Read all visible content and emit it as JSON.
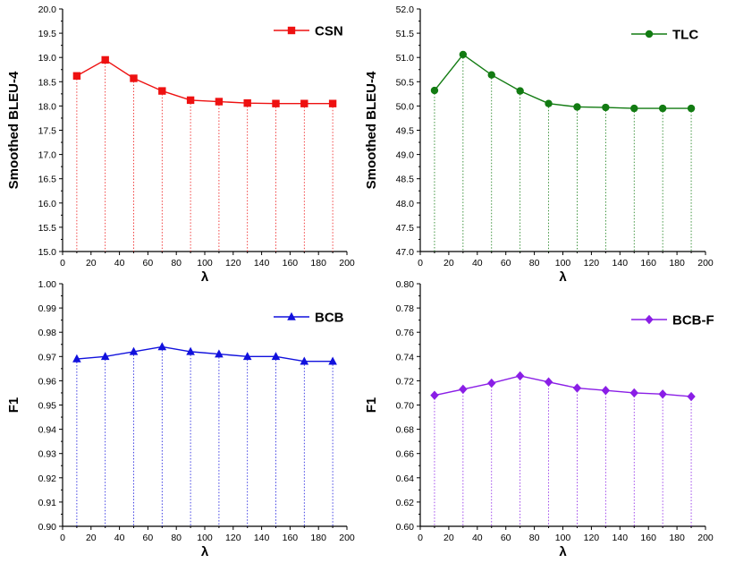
{
  "chart_data": [
    {
      "type": "line",
      "xlabel": "λ",
      "ylabel": "Smoothed BLEU-4",
      "xlim": [
        0,
        200
      ],
      "ylim": [
        15.0,
        20.0
      ],
      "xticks": [
        "0",
        "20",
        "40",
        "60",
        "80",
        "100",
        "120",
        "140",
        "160",
        "180",
        "200"
      ],
      "yticks": [
        "15.0",
        "15.5",
        "16.0",
        "16.5",
        "17.0",
        "17.5",
        "18.0",
        "18.5",
        "19.0",
        "19.5",
        "20.0"
      ],
      "x": [
        10,
        30,
        50,
        70,
        90,
        110,
        130,
        150,
        170,
        190
      ],
      "series": [
        {
          "name": "CSN",
          "values": [
            18.62,
            18.95,
            18.57,
            18.31,
            18.12,
            18.09,
            18.06,
            18.05,
            18.05,
            18.05
          ]
        }
      ],
      "color": "#ee1111",
      "marker": "square",
      "legend_position": "top-right",
      "drop_lines": true
    },
    {
      "type": "line",
      "xlabel": "λ",
      "ylabel": "Smoothed BLEU-4",
      "xlim": [
        0,
        200
      ],
      "ylim": [
        47.0,
        52.0
      ],
      "xticks": [
        "0",
        "20",
        "40",
        "60",
        "80",
        "100",
        "120",
        "140",
        "160",
        "180",
        "200"
      ],
      "yticks": [
        "47.0",
        "47.5",
        "48.0",
        "48.5",
        "49.0",
        "49.5",
        "50.0",
        "50.5",
        "51.0",
        "51.5",
        "52.0"
      ],
      "x": [
        10,
        30,
        50,
        70,
        90,
        110,
        130,
        150,
        170,
        190
      ],
      "series": [
        {
          "name": "TLC",
          "values": [
            50.32,
            51.06,
            50.64,
            50.31,
            50.05,
            49.98,
            49.97,
            49.95,
            49.95,
            49.95
          ]
        }
      ],
      "color": "#127b12",
      "marker": "circle",
      "legend_position": "top-right",
      "drop_lines": true
    },
    {
      "type": "line",
      "xlabel": "λ",
      "ylabel": "F1",
      "xlim": [
        0,
        200
      ],
      "ylim": [
        0.9,
        1.0
      ],
      "xticks": [
        "0",
        "20",
        "40",
        "60",
        "80",
        "100",
        "120",
        "140",
        "160",
        "180",
        "200"
      ],
      "yticks": [
        "0.90",
        "0.91",
        "0.92",
        "0.93",
        "0.94",
        "0.95",
        "0.96",
        "0.97",
        "0.98",
        "0.99",
        "1.00"
      ],
      "x": [
        10,
        30,
        50,
        70,
        90,
        110,
        130,
        150,
        170,
        190
      ],
      "series": [
        {
          "name": "BCB",
          "values": [
            0.969,
            0.97,
            0.972,
            0.974,
            0.972,
            0.971,
            0.97,
            0.97,
            0.968,
            0.968
          ]
        }
      ],
      "color": "#1111dd",
      "marker": "triangle",
      "legend_position": "top-right",
      "drop_lines": true
    },
    {
      "type": "line",
      "xlabel": "λ",
      "ylabel": "F1",
      "xlim": [
        0,
        200
      ],
      "ylim": [
        0.6,
        0.8
      ],
      "xticks": [
        "0",
        "20",
        "40",
        "60",
        "80",
        "100",
        "120",
        "140",
        "160",
        "180",
        "200"
      ],
      "yticks": [
        "0.60",
        "0.62",
        "0.64",
        "0.66",
        "0.68",
        "0.70",
        "0.72",
        "0.74",
        "0.76",
        "0.78",
        "0.80"
      ],
      "x": [
        10,
        30,
        50,
        70,
        90,
        110,
        130,
        150,
        170,
        190
      ],
      "series": [
        {
          "name": "BCB-F",
          "values": [
            0.708,
            0.713,
            0.718,
            0.724,
            0.719,
            0.714,
            0.712,
            0.71,
            0.709,
            0.707
          ]
        }
      ],
      "color": "#8a1ee6",
      "marker": "diamond",
      "legend_position": "top-right",
      "drop_lines": true
    }
  ]
}
